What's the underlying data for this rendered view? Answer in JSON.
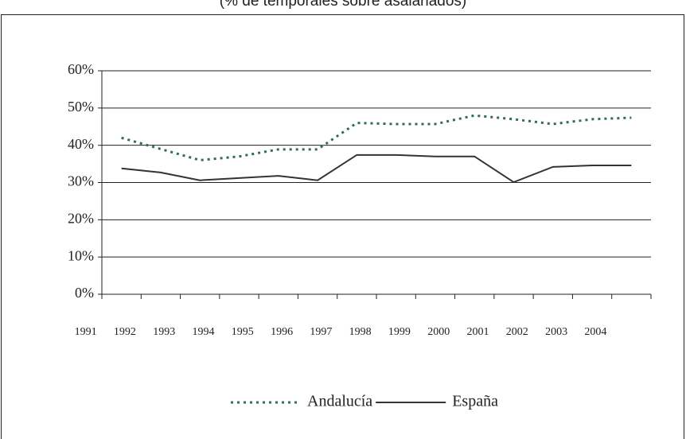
{
  "chart_data": {
    "type": "line",
    "title": "(% de temporales sobre asalariados)",
    "categories": [
      "1991",
      "1992",
      "1993",
      "1994",
      "1995",
      "1996",
      "1997",
      "1998",
      "1999",
      "2000",
      "2001",
      "2002",
      "2003",
      "2004"
    ],
    "series": [
      {
        "name": "Andalucía",
        "color": "#2f6b5f",
        "style": "dotted",
        "values": [
          42,
          39,
          36,
          37,
          38.9,
          38.9,
          46,
          45.7,
          45.7,
          48,
          47,
          45.7,
          47,
          47.4
        ]
      },
      {
        "name": "España",
        "color": "#333333",
        "style": "solid",
        "values": [
          33.8,
          32.7,
          30.6,
          31.2,
          31.8,
          30.6,
          37.4,
          37.4,
          37,
          37,
          30.1,
          34.2,
          34.6,
          34.6
        ]
      }
    ],
    "ylim": [
      0,
      60
    ],
    "yticks": [
      {
        "value": 0,
        "label": "0%"
      },
      {
        "value": 10,
        "label": "10%"
      },
      {
        "value": 20,
        "label": "20%"
      },
      {
        "value": 30,
        "label": "30%"
      },
      {
        "value": 40,
        "label": "40%"
      },
      {
        "value": 50,
        "label": "50%"
      },
      {
        "value": 60,
        "label": "60%"
      }
    ],
    "grid": true,
    "legend": "bottom"
  }
}
